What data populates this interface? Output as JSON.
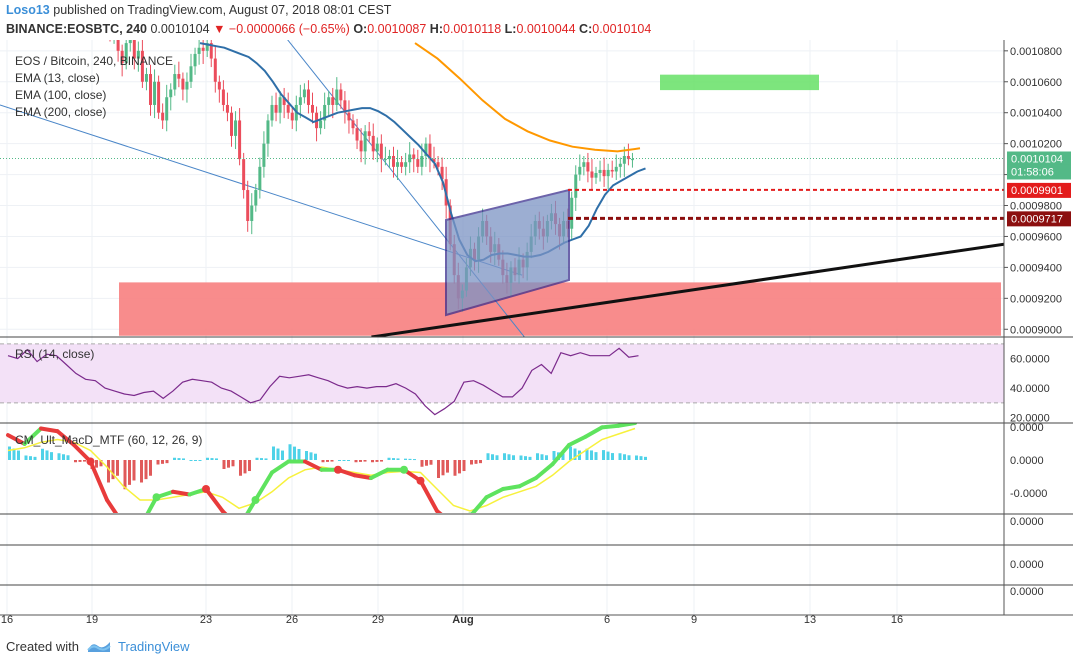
{
  "header": {
    "author": "Loso13",
    "published": "published on TradingView.com, August 07, 2018 08:01 CEST",
    "symbol": "BINANCE:EOSBTC, 240",
    "last": "0.0010104",
    "change": "▼ −0.0000066 (−0.65%)",
    "o_label": "O:",
    "o_value": "0.0010087",
    "h_label": "H:",
    "h_value": "0.0010118",
    "l_label": "L:",
    "l_value": "0.0010044",
    "c_label": "C:",
    "c_value": "0.0010104"
  },
  "legend": {
    "title": "EOS / Bitcoin, 240, BINANCE",
    "ema13": "EMA (13, close)",
    "ema100": "EMA (100, close)",
    "ema200": "EMA (200, close)"
  },
  "footer": {
    "created": "Created with",
    "brand": "TradingView"
  },
  "colors": {
    "up": "#53b987",
    "down": "#eb4d5c",
    "ema13": "#2f6fa8",
    "ema100": "#ff9800",
    "rsi": "#7b2a8c",
    "rsi_band": "#f3e1f7",
    "zone_red": "#f77f7f",
    "zone_green": "#66e066",
    "channel_fill": "#7b93c4",
    "channel_stroke": "#3b2f8e",
    "label_green": "#53b987",
    "label_red": "#e31b1b",
    "label_darkred": "#8c0f0f",
    "macd_up": "#5ee35e",
    "macd_down": "#e83b3b",
    "signal": "#f7f13c",
    "hist_pos": "#4ed2e8",
    "hist_neg": "#e05a5a"
  },
  "chart_data": [
    {
      "type": "candlestick",
      "title": "EOS / Bitcoin, 240, BINANCE",
      "x_ticks": [
        "16",
        "19",
        "23",
        "26",
        "29",
        "Aug",
        "6",
        "9",
        "13",
        "16"
      ],
      "y_ticks": [
        "0.0010800",
        "0.0010600",
        "0.0010400",
        "0.0010200",
        "0.0010000",
        "0.0009800",
        "0.0009600",
        "0.0009400",
        "0.0009200",
        "0.0009000"
      ],
      "ylim": [
        0.000895,
        0.001087
      ],
      "price_labels": [
        {
          "text": "0.0010104",
          "value": 0.0010104,
          "color": "green"
        },
        {
          "text": "01:58:06",
          "value": 0.001002,
          "color": "green"
        },
        {
          "text": "0.0009901",
          "value": 0.0009901,
          "color": "red"
        },
        {
          "text": "0.0009717",
          "value": 0.0009717,
          "color": "darkred"
        }
      ],
      "closes": [
        0.00109,
        0.001095,
        0.00108,
        0.001072,
        0.001085,
        0.00109,
        0.001075,
        0.00108,
        0.00106,
        0.001065,
        0.001045,
        0.00106,
        0.00104,
        0.001035,
        0.00105,
        0.001055,
        0.001065,
        0.001062,
        0.001055,
        0.00106,
        0.00107,
        0.001078,
        0.001082,
        0.00108,
        0.001085,
        0.001075,
        0.00106,
        0.001055,
        0.001045,
        0.00104,
        0.001025,
        0.001035,
        0.00101,
        0.00099,
        0.00097,
        0.00098,
        0.00099,
        0.001005,
        0.00102,
        0.001035,
        0.001045,
        0.00104,
        0.00105,
        0.001045,
        0.00104,
        0.001035,
        0.001045,
        0.00105,
        0.001055,
        0.001045,
        0.00104,
        0.00103,
        0.001035,
        0.001045,
        0.00105,
        0.001045,
        0.001055,
        0.001048,
        0.00104,
        0.001035,
        0.00103,
        0.001022,
        0.001015,
        0.001028,
        0.001025,
        0.001015,
        0.00102,
        0.00101,
        0.00101,
        0.001012,
        0.001005,
        0.001008,
        0.001005,
        0.001008,
        0.001013,
        0.00101,
        0.001005,
        0.001012,
        0.00102,
        0.00101,
        0.001008,
        0.001005,
        0.000997,
        0.00098,
        0.000955,
        0.000935,
        0.00092,
        0.000925,
        0.00094,
        0.000952,
        0.000945,
        0.00096,
        0.00097,
        0.00096,
        0.00095,
        0.000955,
        0.000945,
        0.000935,
        0.00093,
        0.00094,
        0.000935,
        0.000945,
        0.00094,
        0.00095,
        0.00096,
        0.00097,
        0.000965,
        0.00096,
        0.00097,
        0.000975,
        0.000968,
        0.00096,
        0.00097,
        0.000965,
        0.000985,
        0.001,
        0.001005,
        0.001008,
        0.001002,
        0.000998,
        0.001001,
        0.001003,
        0.000999,
        0.001003,
        0.001002,
        0.001005,
        0.001007,
        0.001012,
        0.00101,
        0.00101
      ],
      "ema13": [
        0.001085,
        0.001084,
        0.001083,
        0.001082,
        0.00108,
        0.001078,
        0.001076,
        0.001072,
        0.001067,
        0.00106,
        0.001052,
        0.001046,
        0.00104,
        0.001037,
        0.001034,
        0.001036,
        0.001038,
        0.00104,
        0.001041,
        0.001042,
        0.001043,
        0.001043,
        0.001041,
        0.001038,
        0.001034,
        0.001029,
        0.001024,
        0.001019,
        0.001013,
        0.001007,
        0.000995,
        0.000975,
        0.000958,
        0.000948,
        0.000944,
        0.000945,
        0.000948,
        0.000949,
        0.000949,
        0.000948,
        0.000947,
        0.000947,
        0.000948,
        0.00095,
        0.000953,
        0.000956,
        0.000958,
        0.00096,
        0.000967,
        0.000978,
        0.000987,
        0.000993,
        0.000996,
        0.000999,
        0.001002,
        0.001004
      ],
      "ema100": [
        0.001085,
        0.001075,
        0.001062,
        0.001048,
        0.001036,
        0.001028,
        0.001022,
        0.001018,
        0.001016,
        0.001015,
        0.001017
      ],
      "trendlines": [
        {
          "from": [
            0,
            0.001045
          ],
          "to": [
            0.52,
            0.000935
          ]
        },
        {
          "from": [
            0.24,
            0.001125
          ],
          "to": [
            0.58,
            0.000848
          ]
        },
        {
          "from": [
            0.37,
            0.000895
          ],
          "to": [
            1,
            0.000955
          ]
        }
      ],
      "zones": [
        {
          "name": "support",
          "y0": 0.0009303,
          "y1": 0.0008958
        },
        {
          "name": "target",
          "y0": 0.0010646,
          "y1": 0.0010546
        }
      ]
    },
    {
      "type": "line",
      "title": "RSI (14, close)",
      "y_ticks": [
        "60.0000",
        "40.0000",
        "20.0000"
      ],
      "ylim": [
        17,
        74
      ],
      "bands": [
        70,
        30
      ],
      "values": [
        62,
        60,
        66,
        58,
        63,
        62,
        56,
        50,
        46,
        45,
        40,
        38,
        36,
        35,
        37,
        38,
        33,
        38,
        44,
        46,
        45,
        44,
        40,
        38,
        34,
        30,
        32,
        41,
        48,
        47,
        48,
        49,
        47,
        45,
        42,
        40,
        41,
        40,
        41,
        41,
        43,
        40,
        36,
        28,
        22,
        26,
        31,
        44,
        45,
        42,
        38,
        34,
        34,
        40,
        52,
        56,
        50,
        64,
        62,
        64,
        62,
        62,
        62,
        67,
        61,
        62
      ]
    },
    {
      "type": "macd",
      "title": "CM_Ult_MacD_MTF (60, 12, 26, 9)",
      "y_ticks": [
        "0.0000",
        "0.0000",
        "-0.0000"
      ],
      "macd": [
        0.58,
        0.42,
        0.7,
        0.65,
        0.4,
        0.1,
        -0.6,
        -1.05,
        -1.1,
        -0.55,
        -0.45,
        -0.5,
        -0.4,
        -0.8,
        -1.1,
        -0.6,
        -0.1,
        0.1,
        0.1,
        -0.05,
        -0.05,
        -0.15,
        -0.2,
        -0.05,
        -0.05,
        -0.25,
        -0.8,
        -1.05,
        -0.9,
        -0.55,
        -0.4,
        -0.35,
        -0.2,
        0.05,
        0.4,
        0.55,
        0.72,
        0.75,
        0.8
      ],
      "signal": [
        0.3,
        0.35,
        0.45,
        0.5,
        0.45,
        0.3,
        0.0,
        -0.35,
        -0.6,
        -0.6,
        -0.55,
        -0.5,
        -0.45,
        -0.55,
        -0.75,
        -0.65,
        -0.45,
        -0.2,
        -0.05,
        0.0,
        -0.05,
        -0.1,
        -0.15,
        -0.1,
        -0.08,
        -0.1,
        -0.4,
        -0.7,
        -0.8,
        -0.7,
        -0.55,
        -0.45,
        -0.35,
        -0.15,
        0.1,
        0.3,
        0.5,
        0.6,
        0.7
      ],
      "histogram": [
        0.3,
        0.1,
        0.25,
        0.15,
        -0.05,
        -0.2,
        -0.5,
        -0.65,
        -0.5,
        -0.1,
        0.05,
        0.0,
        0.05,
        -0.2,
        -0.35,
        0.05,
        0.3,
        0.35,
        0.2,
        -0.05,
        -0.0,
        -0.05,
        -0.05,
        0.05,
        0.03,
        -0.15,
        -0.4,
        -0.35,
        -0.1,
        0.15,
        0.15,
        0.1,
        0.15,
        0.2,
        0.3,
        0.25,
        0.22,
        0.15,
        0.1
      ]
    },
    {
      "type": "empty_pane",
      "y_ticks": [
        "0.0000"
      ]
    },
    {
      "type": "empty_pane",
      "y_ticks": [
        "0.0000"
      ]
    },
    {
      "type": "empty_pane",
      "y_ticks": [
        "0.0000"
      ]
    }
  ]
}
